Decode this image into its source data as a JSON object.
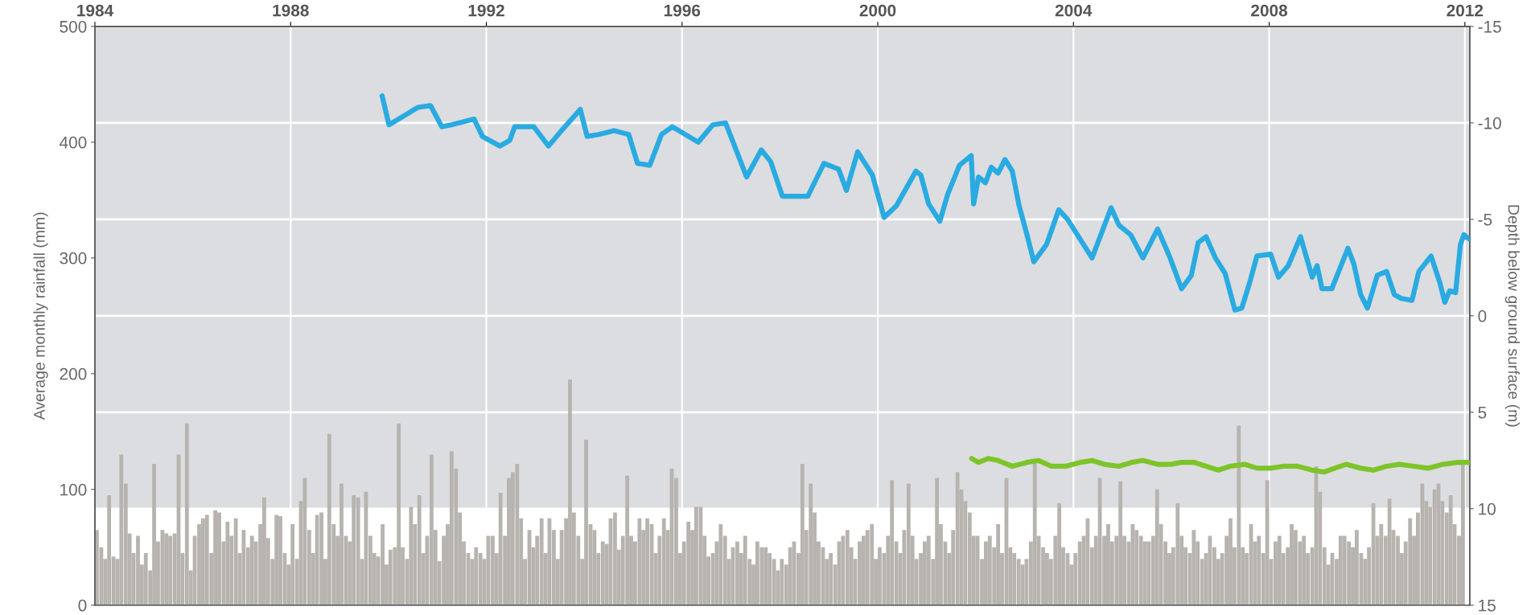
{
  "chart_data": {
    "type": "bar",
    "ylabel": "Average monthly rainfall (mm)",
    "y2label": "Depth below ground surface (m)",
    "xlim": [
      1984,
      2012.1
    ],
    "xticks": [
      1984,
      1988,
      1992,
      1996,
      2000,
      2004,
      2008,
      2012
    ],
    "ylim": [
      0,
      500
    ],
    "yticks": [
      0,
      100,
      200,
      300,
      400,
      500
    ],
    "y2lim": [
      15,
      -15
    ],
    "y2ticks": [
      -15,
      -10,
      -5,
      0,
      5,
      10,
      15
    ],
    "grid": true,
    "bands": [
      {
        "axis": "y2",
        "from": -15,
        "to": -10,
        "color": "#dcdde0"
      },
      {
        "axis": "y2",
        "from": -10,
        "to": -5,
        "color": "#dcdde0"
      },
      {
        "axis": "y2",
        "from": -5,
        "to": 0,
        "color": "#dcdde0"
      },
      {
        "axis": "y2",
        "from": 0,
        "to": 5,
        "color": "#dcdde0"
      },
      {
        "axis": "y2",
        "from": 5,
        "to": 10,
        "color": "#dcdde0"
      }
    ],
    "series": [
      {
        "color": "#b7b4af",
        "x": [
          1984.04,
          1984.13,
          1984.21,
          1984.29,
          1984.38,
          1984.46,
          1984.54,
          1984.63,
          1984.71,
          1984.79,
          1984.88,
          1984.96,
          1985.04,
          1985.13,
          1985.21,
          1985.29,
          1985.38,
          1985.46,
          1985.54,
          1985.63,
          1985.71,
          1985.79,
          1985.88,
          1985.96,
          1986.04,
          1986.13,
          1986.21,
          1986.29,
          1986.38,
          1986.46,
          1986.54,
          1986.63,
          1986.71,
          1986.79,
          1986.88,
          1986.96,
          1987.04,
          1987.13,
          1987.21,
          1987.29,
          1987.38,
          1987.46,
          1987.54,
          1987.63,
          1987.71,
          1987.79,
          1987.88,
          1987.96,
          1988.04,
          1988.13,
          1988.21,
          1988.29,
          1988.38,
          1988.46,
          1988.54,
          1988.63,
          1988.71,
          1988.79,
          1988.88,
          1988.96,
          1989.04,
          1989.13,
          1989.21,
          1989.29,
          1989.38,
          1989.46,
          1989.54,
          1989.63,
          1989.71,
          1989.79,
          1989.88,
          1989.96,
          1990.04,
          1990.13,
          1990.21,
          1990.29,
          1990.38,
          1990.46,
          1990.54,
          1990.63,
          1990.71,
          1990.79,
          1990.88,
          1990.96,
          1991.04,
          1991.13,
          1991.21,
          1991.29,
          1991.38,
          1991.46,
          1991.54,
          1991.63,
          1991.71,
          1991.79,
          1991.88,
          1991.96,
          1992.04,
          1992.13,
          1992.21,
          1992.29,
          1992.38,
          1992.46,
          1992.54,
          1992.63,
          1992.71,
          1992.79,
          1992.88,
          1992.96,
          1993.04,
          1993.13,
          1993.21,
          1993.29,
          1993.38,
          1993.46,
          1993.54,
          1993.63,
          1993.71,
          1993.79,
          1993.88,
          1993.96,
          1994.04,
          1994.13,
          1994.21,
          1994.29,
          1994.38,
          1994.46,
          1994.54,
          1994.63,
          1994.71,
          1994.79,
          1994.88,
          1994.96,
          1995.04,
          1995.13,
          1995.21,
          1995.29,
          1995.38,
          1995.46,
          1995.54,
          1995.63,
          1995.71,
          1995.79,
          1995.88,
          1995.96,
          1996.04,
          1996.13,
          1996.21,
          1996.29,
          1996.38,
          1996.46,
          1996.54,
          1996.63,
          1996.71,
          1996.79,
          1996.88,
          1996.96,
          1997.04,
          1997.13,
          1997.21,
          1997.29,
          1997.38,
          1997.46,
          1997.54,
          1997.63,
          1997.71,
          1997.79,
          1997.88,
          1997.96,
          1998.04,
          1998.13,
          1998.21,
          1998.29,
          1998.38,
          1998.46,
          1998.54,
          1998.63,
          1998.71,
          1998.79,
          1998.88,
          1998.96,
          1999.04,
          1999.13,
          1999.21,
          1999.29,
          1999.38,
          1999.46,
          1999.54,
          1999.63,
          1999.71,
          1999.79,
          1999.88,
          1999.96,
          2000.04,
          2000.13,
          2000.21,
          2000.29,
          2000.38,
          2000.46,
          2000.54,
          2000.63,
          2000.71,
          2000.79,
          2000.88,
          2000.96,
          2001.04,
          2001.13,
          2001.21,
          2001.29,
          2001.38,
          2001.46,
          2001.54,
          2001.63,
          2001.71,
          2001.79,
          2001.88,
          2001.96,
          2002.04,
          2002.13,
          2002.21,
          2002.29,
          2002.38,
          2002.46,
          2002.54,
          2002.63,
          2002.71,
          2002.79,
          2002.88,
          2002.96,
          2003.04,
          2003.13,
          2003.21,
          2003.29,
          2003.38,
          2003.46,
          2003.54,
          2003.63,
          2003.71,
          2003.79,
          2003.88,
          2003.96,
          2004.04,
          2004.13,
          2004.21,
          2004.29,
          2004.38,
          2004.46,
          2004.54,
          2004.63,
          2004.71,
          2004.79,
          2004.88,
          2004.96,
          2005.04,
          2005.13,
          2005.21,
          2005.29,
          2005.38,
          2005.46,
          2005.54,
          2005.63,
          2005.71,
          2005.79,
          2005.88,
          2005.96,
          2006.04,
          2006.13,
          2006.21,
          2006.29,
          2006.38,
          2006.46,
          2006.54,
          2006.63,
          2006.71,
          2006.79,
          2006.88,
          2006.96,
          2007.04,
          2007.13,
          2007.21,
          2007.29,
          2007.38,
          2007.46,
          2007.54,
          2007.63,
          2007.71,
          2007.79,
          2007.88,
          2007.96,
          2008.04,
          2008.13,
          2008.21,
          2008.29,
          2008.38,
          2008.46,
          2008.54,
          2008.63,
          2008.71,
          2008.79,
          2008.88,
          2008.96,
          2009.04,
          2009.13,
          2009.21,
          2009.29,
          2009.38,
          2009.46,
          2009.54,
          2009.63,
          2009.71,
          2009.79,
          2009.88,
          2009.96,
          2010.04,
          2010.13,
          2010.21,
          2010.29,
          2010.38,
          2010.46,
          2010.54,
          2010.63,
          2010.71,
          2010.79,
          2010.88,
          2010.96,
          2011.04,
          2011.13,
          2011.21,
          2011.29,
          2011.38,
          2011.46,
          2011.54,
          2011.63,
          2011.71,
          2011.79,
          2011.88,
          2011.96
        ],
        "values": [
          65,
          50,
          40,
          95,
          42,
          40,
          130,
          105,
          62,
          45,
          60,
          35,
          45,
          30,
          122,
          55,
          65,
          62,
          60,
          62,
          130,
          45,
          157,
          30,
          60,
          70,
          75,
          78,
          45,
          82,
          80,
          55,
          72,
          60,
          75,
          45,
          65,
          50,
          60,
          55,
          70,
          93,
          58,
          40,
          78,
          77,
          45,
          35,
          70,
          40,
          90,
          110,
          65,
          45,
          78,
          80,
          40,
          148,
          70,
          60,
          105,
          60,
          55,
          95,
          93,
          40,
          98,
          60,
          45,
          42,
          70,
          35,
          48,
          50,
          157,
          50,
          40,
          85,
          70,
          95,
          45,
          60,
          130,
          65,
          38,
          60,
          70,
          133,
          118,
          80,
          55,
          45,
          40,
          50,
          45,
          40,
          60,
          60,
          45,
          97,
          60,
          110,
          115,
          122,
          75,
          40,
          65,
          50,
          60,
          75,
          45,
          75,
          65,
          40,
          65,
          75,
          195,
          80,
          60,
          40,
          143,
          70,
          65,
          45,
          55,
          53,
          75,
          80,
          48,
          60,
          112,
          60,
          55,
          75,
          65,
          75,
          70,
          45,
          60,
          75,
          65,
          118,
          110,
          45,
          55,
          72,
          65,
          85,
          85,
          60,
          42,
          45,
          55,
          70,
          60,
          40,
          50,
          55,
          45,
          60,
          40,
          35,
          55,
          50,
          50,
          45,
          40,
          30,
          40,
          35,
          50,
          55,
          45,
          122,
          65,
          105,
          80,
          55,
          50,
          40,
          45,
          35,
          55,
          60,
          65,
          50,
          40,
          55,
          60,
          65,
          70,
          40,
          50,
          45,
          60,
          108,
          55,
          45,
          65,
          105,
          60,
          40,
          45,
          55,
          60,
          40,
          110,
          70,
          55,
          45,
          65,
          115,
          100,
          90,
          80,
          60,
          60,
          40,
          55,
          60,
          50,
          70,
          45,
          110,
          50,
          45,
          40,
          35,
          40,
          55,
          122,
          60,
          50,
          45,
          40,
          60,
          88,
          50,
          45,
          35,
          45,
          55,
          60,
          75,
          50,
          60,
          110,
          60,
          70,
          55,
          60,
          107,
          60,
          55,
          70,
          65,
          60,
          55,
          55,
          60,
          100,
          70,
          55,
          45,
          50,
          88,
          60,
          50,
          45,
          65,
          55,
          40,
          45,
          60,
          50,
          40,
          45,
          60,
          75,
          50,
          155,
          50,
          45,
          70,
          55,
          60,
          45,
          108,
          40,
          55,
          60,
          45,
          50,
          70,
          65,
          55,
          60,
          45,
          50,
          120,
          98,
          50,
          35,
          45,
          40,
          60,
          60,
          55,
          50,
          65,
          45,
          40,
          50,
          88,
          60,
          70,
          60,
          92,
          65,
          60,
          45,
          55,
          75,
          60,
          80,
          105,
          90,
          85,
          100,
          105,
          90,
          80,
          95,
          70,
          60,
          123
        ]
      },
      {
        "type": "line",
        "axis": "y2",
        "color": "#29abe2",
        "x": [
          1989.87,
          1990.01,
          1990.6,
          1990.86,
          1991.09,
          1991.29,
          1991.75,
          1991.92,
          1992.28,
          1992.48,
          1992.58,
          1992.97,
          1993.27,
          1993.57,
          1993.92,
          1994.06,
          1994.3,
          1994.61,
          1994.91,
          1995.09,
          1995.34,
          1995.58,
          1995.8,
          1996.33,
          1996.63,
          1996.89,
          1997.32,
          1997.62,
          1997.81,
          1998.05,
          1998.57,
          1998.9,
          1999.2,
          1999.36,
          1999.59,
          1999.89,
          2000.13,
          2000.38,
          2000.78,
          2000.88,
          2001.04,
          2001.27,
          2001.43,
          2001.67,
          2001.91,
          2001.96,
          2002.06,
          2002.2,
          2002.32,
          2002.46,
          2002.6,
          2002.75,
          2002.89,
          2003.05,
          2003.19,
          2003.45,
          2003.7,
          2003.88,
          2004.38,
          2004.77,
          2004.93,
          2005.17,
          2005.42,
          2005.72,
          2005.96,
          2006.21,
          2006.41,
          2006.55,
          2006.71,
          2006.9,
          2007.1,
          2007.3,
          2007.44,
          2007.6,
          2007.75,
          2008.03,
          2008.19,
          2008.39,
          2008.64,
          2008.88,
          2008.98,
          2009.08,
          2009.28,
          2009.61,
          2009.73,
          2009.87,
          2010.01,
          2010.21,
          2010.4,
          2010.56,
          2010.7,
          2010.92,
          2011.06,
          2011.31,
          2011.49,
          2011.59,
          2011.69,
          2011.81,
          2011.91,
          2011.98,
          2012.08
        ],
        "values": [
          -11.4,
          -9.9,
          -10.8,
          -10.9,
          -9.8,
          -9.9,
          -10.2,
          -9.3,
          -8.8,
          -9.1,
          -9.8,
          -9.8,
          -8.8,
          -9.7,
          -10.7,
          -9.3,
          -9.4,
          -9.6,
          -9.4,
          -7.9,
          -7.8,
          -9.4,
          -9.8,
          -9.0,
          -9.9,
          -10.0,
          -7.2,
          -8.6,
          -8.0,
          -6.2,
          -6.2,
          -7.9,
          -7.6,
          -6.5,
          -8.5,
          -7.3,
          -5.1,
          -5.7,
          -7.5,
          -7.3,
          -5.8,
          -4.9,
          -6.3,
          -7.8,
          -8.3,
          -5.8,
          -7.2,
          -6.9,
          -7.7,
          -7.4,
          -8.1,
          -7.5,
          -5.7,
          -4.2,
          -2.8,
          -3.7,
          -5.5,
          -5.0,
          -3.0,
          -5.6,
          -4.7,
          -4.2,
          -3.0,
          -4.5,
          -3.1,
          -1.4,
          -2.1,
          -3.8,
          -4.1,
          -3.0,
          -2.2,
          -0.3,
          -0.4,
          -1.7,
          -3.1,
          -3.2,
          -2.0,
          -2.6,
          -4.1,
          -2.0,
          -2.6,
          -1.4,
          -1.4,
          -3.5,
          -2.7,
          -1.1,
          -0.4,
          -2.1,
          -2.3,
          -1.1,
          -0.9,
          -0.8,
          -2.3,
          -3.1,
          -1.7,
          -0.7,
          -1.3,
          -1.2,
          -3.7,
          -4.2,
          -4.0
        ]
      },
      {
        "type": "line",
        "axis": "y2",
        "color": "#7dc42a",
        "x": [
          2001.92,
          2002.06,
          2002.26,
          2002.46,
          2002.75,
          2003.05,
          2003.29,
          2003.55,
          2003.84,
          2004.14,
          2004.38,
          2004.63,
          2004.93,
          2005.19,
          2005.42,
          2005.72,
          2005.98,
          2006.21,
          2006.47,
          2006.71,
          2006.96,
          2007.2,
          2007.5,
          2007.75,
          2008.03,
          2008.29,
          2008.58,
          2008.88,
          2009.12,
          2009.34,
          2009.57,
          2009.87,
          2010.13,
          2010.4,
          2010.66,
          2010.96,
          2011.25,
          2011.55,
          2011.85,
          2012.08
        ],
        "values": [
          7.4,
          7.6,
          7.4,
          7.5,
          7.8,
          7.6,
          7.5,
          7.8,
          7.8,
          7.6,
          7.5,
          7.7,
          7.8,
          7.6,
          7.5,
          7.7,
          7.7,
          7.6,
          7.6,
          7.8,
          8.0,
          7.8,
          7.7,
          7.9,
          7.9,
          7.8,
          7.8,
          8.0,
          8.1,
          7.9,
          7.7,
          7.9,
          8.0,
          7.8,
          7.7,
          7.8,
          7.9,
          7.7,
          7.6,
          7.6
        ]
      }
    ]
  }
}
